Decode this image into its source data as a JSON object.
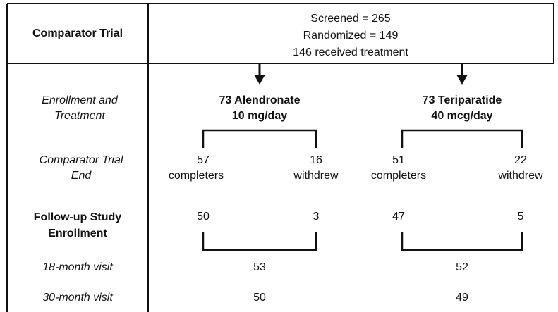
{
  "header": {
    "title": "Comparator Trial",
    "lines": [
      "Screened = 265",
      "Randomized = 149",
      "146 received treatment"
    ]
  },
  "row_labels": {
    "enrollment": [
      "Enrollment and",
      "Treatment"
    ],
    "trial_end": [
      "Comparator Trial",
      "End"
    ],
    "followup": [
      "Follow-up Study",
      "Enrollment"
    ],
    "visit18": "18-month visit",
    "visit30": "30-month visit"
  },
  "arms": [
    {
      "name": [
        "73 Alendronate",
        "10 mg/day"
      ],
      "completers": [
        "57",
        "completers"
      ],
      "withdrew": [
        "16",
        "withdrew"
      ],
      "followup_completers": "50",
      "followup_withdrew": "3",
      "visit18": "53",
      "visit30": "50"
    },
    {
      "name": [
        "73 Teriparatide",
        "40 mcg/day"
      ],
      "completers": [
        "51",
        "completers"
      ],
      "withdrew": [
        "22",
        "withdrew"
      ],
      "followup_completers": "47",
      "followup_withdrew": "5",
      "visit18": "52",
      "visit30": "49"
    }
  ]
}
